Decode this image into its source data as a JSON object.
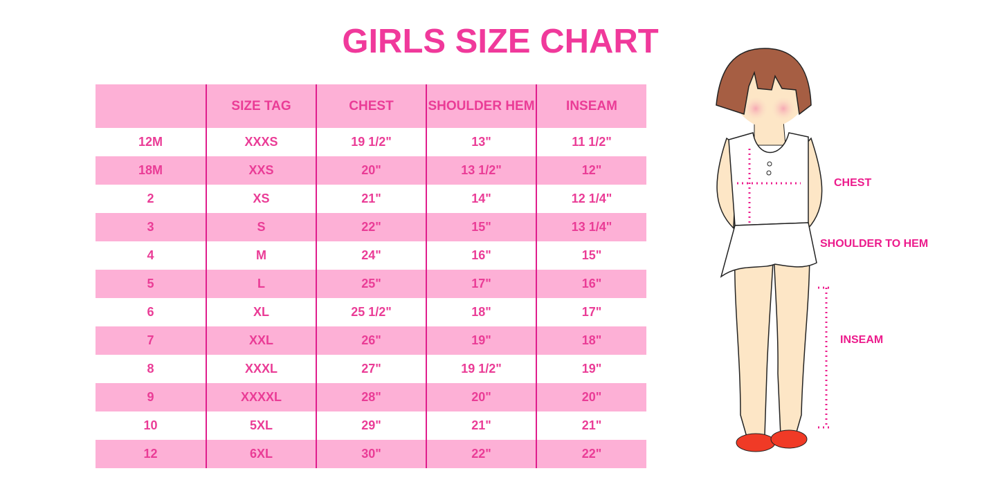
{
  "title": "GIRLS SIZE CHART",
  "table": {
    "headers": [
      "",
      "SIZE TAG",
      "CHEST",
      "SHOULDER HEM",
      "INSEAM"
    ],
    "rows": [
      [
        "12M",
        "XXXS",
        "19 1/2\"",
        "13\"",
        "11 1/2\""
      ],
      [
        "18M",
        "XXS",
        "20\"",
        "13 1/2\"",
        "12\""
      ],
      [
        "2",
        "XS",
        "21\"",
        "14\"",
        "12 1/4\""
      ],
      [
        "3",
        "S",
        "22\"",
        "15\"",
        "13 1/4\""
      ],
      [
        "4",
        "M",
        "24\"",
        "16\"",
        "15\""
      ],
      [
        "5",
        "L",
        "25\"",
        "17\"",
        "16\""
      ],
      [
        "6",
        "XL",
        "25 1/2\"",
        "18\"",
        "17\""
      ],
      [
        "7",
        "XXL",
        "26\"",
        "19\"",
        "18\""
      ],
      [
        "8",
        "XXXL",
        "27\"",
        "19 1/2\"",
        "19\""
      ],
      [
        "9",
        "XXXXL",
        "28\"",
        "20\"",
        "20\""
      ],
      [
        "10",
        "5XL",
        "29\"",
        "21\"",
        "21\""
      ],
      [
        "12",
        "6XL",
        "30\"",
        "22\"",
        "22\""
      ]
    ]
  },
  "illustration": {
    "labels": {
      "chest": "CHEST",
      "shoulder_to_hem": "SHOULDER TO HEM",
      "inseam": "INSEAM"
    }
  },
  "colors": {
    "accent": "#f0399b",
    "row_pink": "#fdb0d6",
    "divider": "#e01c8c"
  }
}
